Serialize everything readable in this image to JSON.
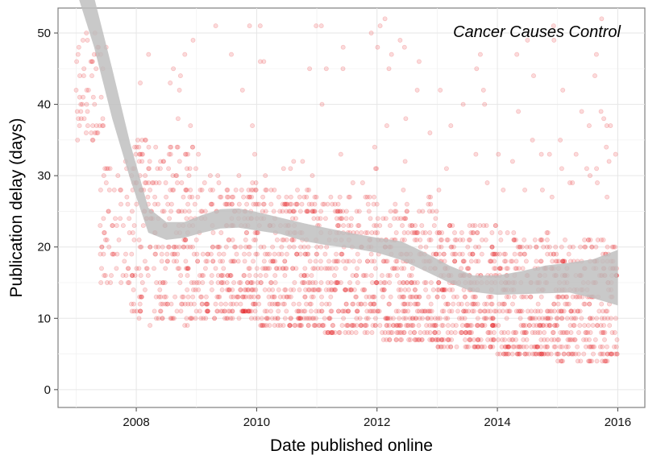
{
  "chart_data": {
    "type": "scatter",
    "title": "",
    "annotation": "Cancer Causes Control",
    "xlabel": "Date published online",
    "ylabel": "Publication delay (days)",
    "xlim": [
      2006.7,
      2016.45
    ],
    "ylim": [
      -2.5,
      53.5
    ],
    "x_ticks": [
      2008,
      2010,
      2012,
      2014,
      2016
    ],
    "x_tick_labels": [
      "2008",
      "2010",
      "2012",
      "2014",
      "2016"
    ],
    "y_ticks": [
      0,
      10,
      20,
      30,
      40,
      50
    ],
    "y_tick_labels": [
      "0",
      "10",
      "20",
      "30",
      "40",
      "50"
    ],
    "grid": true,
    "point_color": "#e41a1c",
    "point_opacity": 0.16,
    "band_color": "#bdbdbd",
    "smooth": {
      "x": [
        2007.0,
        2007.3,
        2007.6,
        2007.9,
        2008.2,
        2008.5,
        2008.8,
        2009.1,
        2009.4,
        2009.7,
        2010.0,
        2010.4,
        2010.8,
        2011.2,
        2011.6,
        2012.0,
        2012.4,
        2012.8,
        2013.2,
        2013.6,
        2014.0,
        2014.4,
        2014.8,
        2015.2,
        2015.6,
        2016.0
      ],
      "lower": [
        56.0,
        48.0,
        38.0,
        29.5,
        22.0,
        21.0,
        21.3,
        22.0,
        22.6,
        22.7,
        22.3,
        21.8,
        20.8,
        20.2,
        19.8,
        19.2,
        18.2,
        16.6,
        15.0,
        13.7,
        13.3,
        13.4,
        13.5,
        13.6,
        12.8,
        11.8
      ],
      "upper": [
        57.0,
        55.0,
        45.0,
        34.5,
        25.5,
        23.5,
        23.5,
        24.5,
        25.3,
        25.4,
        24.9,
        24.1,
        23.3,
        22.6,
        21.9,
        21.3,
        20.8,
        19.2,
        17.4,
        16.0,
        16.0,
        16.6,
        17.4,
        17.8,
        18.3,
        19.6
      ]
    },
    "clusters": [
      {
        "x": [
          2007.0,
          2007.5
        ],
        "y": [
          35,
          50
        ],
        "n": 55
      },
      {
        "x": [
          2007.4,
          2007.9
        ],
        "y": [
          15,
          32
        ],
        "n": 60
      },
      {
        "x": [
          2007.9,
          2009.0
        ],
        "y": [
          9,
          35
        ],
        "n": 260
      },
      {
        "x": [
          2009.0,
          2010.0
        ],
        "y": [
          10,
          30
        ],
        "n": 260
      },
      {
        "x": [
          2010.0,
          2011.0
        ],
        "y": [
          9,
          28
        ],
        "n": 280
      },
      {
        "x": [
          2011.0,
          2012.0
        ],
        "y": [
          8,
          27
        ],
        "n": 260
      },
      {
        "x": [
          2012.0,
          2013.0
        ],
        "y": [
          7,
          26
        ],
        "n": 280
      },
      {
        "x": [
          2013.0,
          2014.0
        ],
        "y": [
          6,
          24
        ],
        "n": 300
      },
      {
        "x": [
          2014.0,
          2015.0
        ],
        "y": [
          5,
          22
        ],
        "n": 280
      },
      {
        "x": [
          2015.0,
          2016.0
        ],
        "y": [
          4,
          21
        ],
        "n": 260
      },
      {
        "x": [
          2008.0,
          2016.0
        ],
        "y": [
          27,
          52
        ],
        "n": 110
      }
    ]
  }
}
